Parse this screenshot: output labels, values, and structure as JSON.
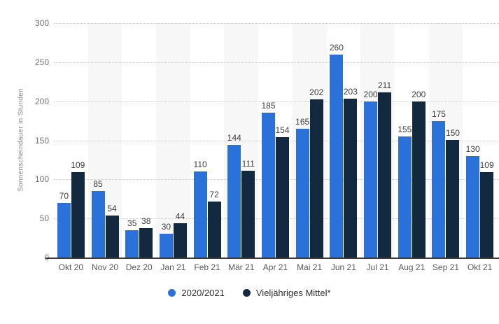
{
  "chart_data": {
    "type": "bar",
    "title": "",
    "xlabel": "",
    "ylabel": "Sonnenscheindauer in Stunden",
    "ylim": [
      0,
      300
    ],
    "yticks": [
      0,
      50,
      100,
      150,
      200,
      250,
      300
    ],
    "grid": "horizontal-dotted",
    "legend_position": "bottom-center",
    "alternating_plot_bands": true,
    "categories": [
      "Okt 20",
      "Nov 20",
      "Dez 20",
      "Jan 21",
      "Feb 21",
      "Mär 21",
      "Apr 21",
      "Mai 21",
      "Jun 21",
      "Jul 21",
      "Aug 21",
      "Sep 21",
      "Okt 21"
    ],
    "series": [
      {
        "name": "2020/2021",
        "color": "#2a72d9",
        "values": [
          70,
          85,
          35,
          30,
          110,
          144,
          185,
          165,
          260,
          200,
          155,
          175,
          130
        ]
      },
      {
        "name": "Vieljähriges Mittel*",
        "color": "#13293f",
        "values": [
          109,
          54,
          38,
          44,
          72,
          111,
          154,
          202,
          203,
          211,
          200,
          150,
          109
        ]
      }
    ]
  },
  "colors": {
    "background": "#ffffff",
    "plot_band": "#f7f7f7",
    "gridline": "#c9c9c9",
    "axis_line": "#3a3a3a",
    "tick_label": "#737373",
    "x_label": "#595959",
    "value_label": "#3c3c3c",
    "axis_title": "#8c8c8c",
    "legend_text": "#2f2f2f"
  }
}
